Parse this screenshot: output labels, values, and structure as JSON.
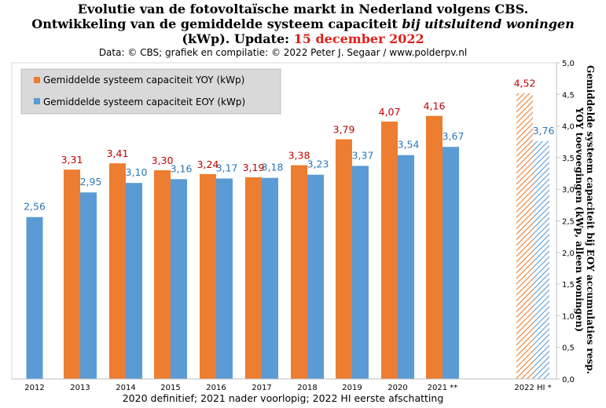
{
  "title": {
    "line1": "Evolutie  van de fotovoltaïsche  markt in Nederland volgens CBS.",
    "line2_a": "Ontwikkeling  van de gemiddelde  systeem capaciteit ",
    "line2_italic": "bij uitsluitend  woningen",
    "line3_a": "(kWp). Update: ",
    "line3_date": "15 december 2022"
  },
  "subtitle": "Data: © CBS; grafiek en compilatie: © 2022 Peter J. Segaar / www.polderpv.nl",
  "footnote": "2020 definitief; 2021 nader voorlopig; 2022 HI eerste afschatting",
  "colors": {
    "yoy": "#ed7d31",
    "eoy": "#5b9bd5",
    "yoy_label": "#c00000",
    "eoy_label": "#2e75b6"
  },
  "chart_data": {
    "type": "bar",
    "categories": [
      "2012",
      "2013",
      "2014",
      "2015",
      "2016",
      "2017",
      "2018",
      "2019",
      "2020",
      "2021 **",
      "2022 HI *"
    ],
    "series": [
      {
        "name": "Gemiddelde systeem capaciteit YOY (kWp)",
        "values": [
          null,
          3.31,
          3.41,
          3.3,
          3.24,
          3.19,
          3.38,
          3.79,
          4.07,
          4.16,
          4.52
        ],
        "labels": [
          "",
          "3,31",
          "3,41",
          "3,30",
          "3,24",
          "3,19",
          "3,38",
          "3,79",
          "4,07",
          "4,16",
          "4,52"
        ]
      },
      {
        "name": "Gemiddelde systeem capaciteit EOY (kWp)",
        "values": [
          2.56,
          2.95,
          3.1,
          3.16,
          3.17,
          3.18,
          3.23,
          3.37,
          3.54,
          3.67,
          3.76
        ],
        "labels": [
          "2,56",
          "2,95",
          "3,10",
          "3,16",
          "3,17",
          "3,18",
          "3,23",
          "3,37",
          "3,54",
          "3,67",
          "3,76"
        ]
      }
    ],
    "estimate_category": "2022 HI *",
    "ylim": [
      0,
      5
    ],
    "yticks": [
      "0,0",
      "0,5",
      "1,0",
      "1,5",
      "2,0",
      "2,5",
      "3,0",
      "3,5",
      "4,0",
      "4,5",
      "5,0"
    ],
    "ylabel": "Gemiddelde systeem capaciteit bij EOY accumulaties resp. YOY toevoegingen (kWp, alleen woningen)",
    "y_axis_side": "right",
    "legend_position": "top-left",
    "grid": false
  }
}
